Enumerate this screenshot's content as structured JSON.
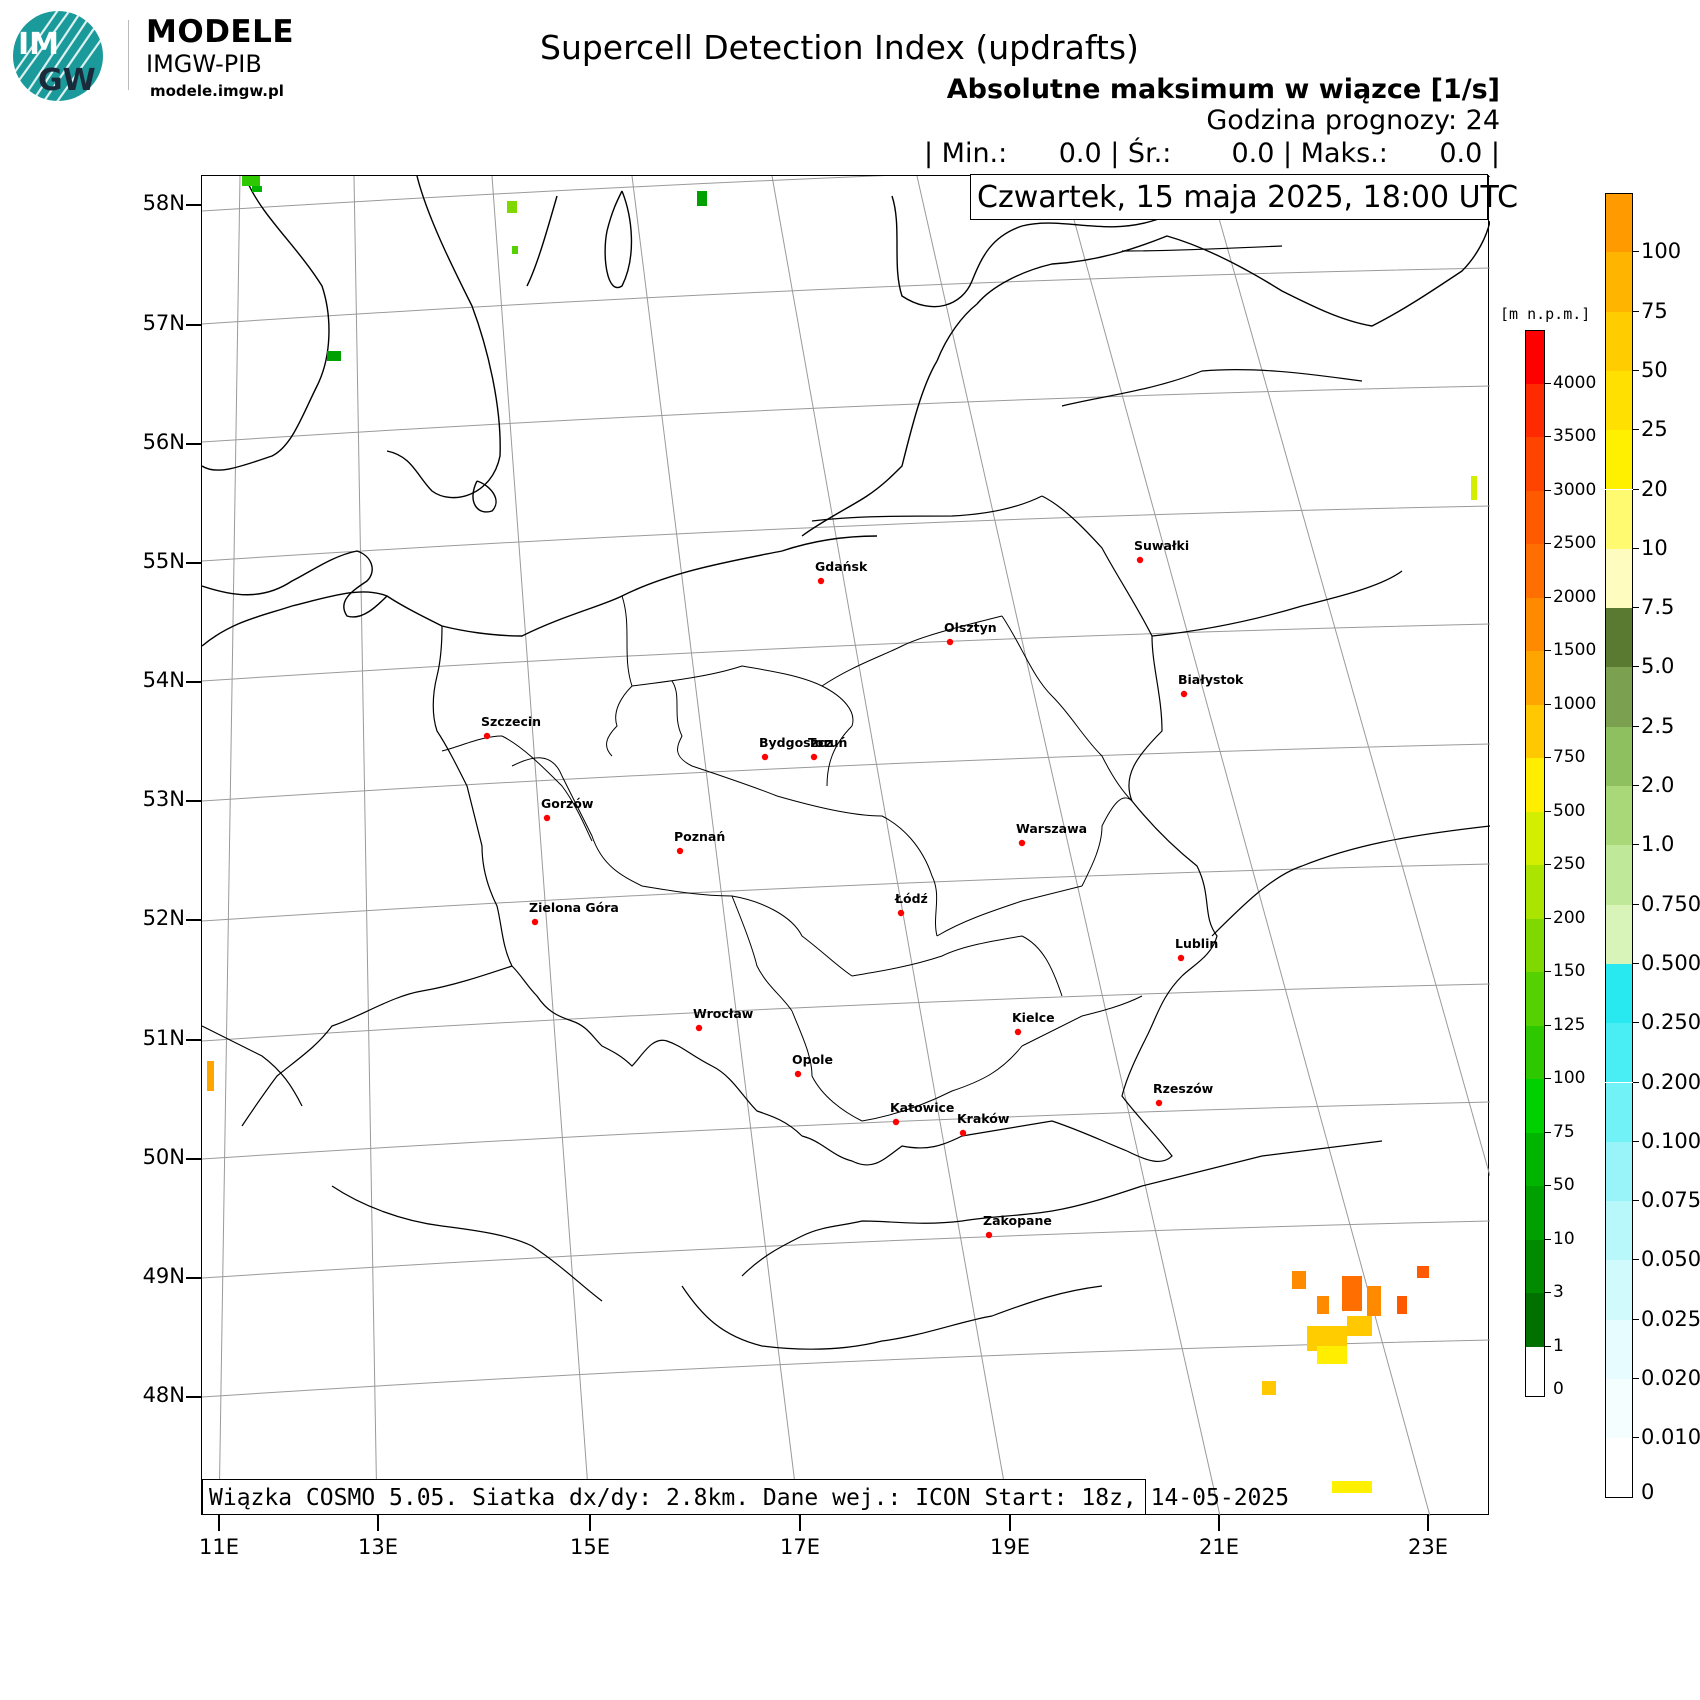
{
  "branding": {
    "logo_text_top": "IM",
    "logo_text_bottom": "GW",
    "title": "MODELE",
    "subtitle": "IMGW-PIB",
    "url": "modele.imgw.pl"
  },
  "header": {
    "title": "Supercell Detection Index (updrafts)",
    "subtitle": "Absolutne maksimum w wiązce [1/s]",
    "forecast_hour": "Godzina prognozy: 24",
    "stats": "| Min.:      0.0 | Śr.:       0.0 | Maks.:      0.0 |",
    "valid_time": "Czwartek, 15 maja 2025, 18:00 UTC"
  },
  "footer": {
    "model_info": "Wiązka COSMO 5.05. Siatka dx/dy: 2.8km. Dane wej.: ICON Start: 18z, 14-05-2025"
  },
  "axes": {
    "lat_labels": [
      "58N",
      "57N",
      "56N",
      "55N",
      "54N",
      "53N",
      "52N",
      "51N",
      "50N",
      "49N",
      "48N"
    ],
    "lon_labels": [
      "11E",
      "13E",
      "15E",
      "17E",
      "19E",
      "21E",
      "23E"
    ]
  },
  "cities": [
    {
      "name": "Gdańsk"
    },
    {
      "name": "Suwałki"
    },
    {
      "name": "Olsztyn"
    },
    {
      "name": "Białystok"
    },
    {
      "name": "Szczecin"
    },
    {
      "name": "Bydgoszcz"
    },
    {
      "name": "Toruń"
    },
    {
      "name": "Gorzów"
    },
    {
      "name": "Poznań"
    },
    {
      "name": "Warszawa"
    },
    {
      "name": "Zielona Góra"
    },
    {
      "name": "Łódź"
    },
    {
      "name": "Lublin"
    },
    {
      "name": "Wrocław"
    },
    {
      "name": "Kielce"
    },
    {
      "name": "Opole"
    },
    {
      "name": "Rzeszów"
    },
    {
      "name": "Katowice"
    },
    {
      "name": "Kraków"
    },
    {
      "name": "Zakopane"
    }
  ],
  "elevation_legend": {
    "unit": "[m n.p.m.]",
    "labels": [
      "4000",
      "3500",
      "3000",
      "2500",
      "2000",
      "1500",
      "1000",
      "750",
      "500",
      "250",
      "200",
      "150",
      "125",
      "100",
      "75",
      "50",
      "10",
      "3",
      "1",
      "0"
    ],
    "colors": [
      "#ff0000",
      "#ff2a00",
      "#ff4400",
      "#ff5a00",
      "#ff6e00",
      "#ff8a00",
      "#ffa500",
      "#ffc800",
      "#ffee00",
      "#d4ee00",
      "#aae400",
      "#7fd800",
      "#55d000",
      "#2ec800",
      "#00d000",
      "#00b400",
      "#00a000",
      "#008a00",
      "#007000",
      "#ffffff"
    ]
  },
  "index_legend": {
    "labels": [
      "100",
      "75",
      "50",
      "25",
      "20",
      "10",
      "7.5",
      "5.0",
      "2.5",
      "2.0",
      "1.0",
      "0.750",
      "0.500",
      "0.250",
      "0.200",
      "0.100",
      "0.075",
      "0.050",
      "0.025",
      "0.020",
      "0.010",
      "0"
    ],
    "colors": [
      "#ff9a00",
      "#ffb400",
      "#ffcc00",
      "#ffe000",
      "#fff000",
      "#fffa70",
      "#fffcc0",
      "#5a7a32",
      "#7aa050",
      "#8fc060",
      "#a8d878",
      "#bfe898",
      "#d8f4b8",
      "#28e8f0",
      "#48eef4",
      "#70f2f6",
      "#98f4f8",
      "#b8f8fa",
      "#d0fafc",
      "#e6fcfe",
      "#f4feff",
      "#ffffff"
    ]
  }
}
